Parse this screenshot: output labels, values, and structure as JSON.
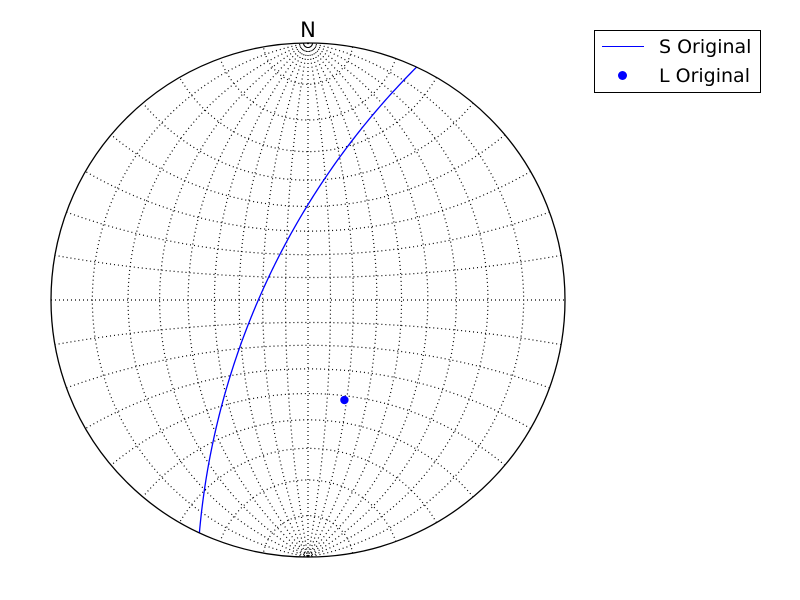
{
  "chart_data": {
    "type": "stereonet",
    "projection": "equal-angle lower hemisphere",
    "north_label": "N",
    "grid": true,
    "grid_spacing_deg": 10,
    "series": [
      {
        "name": "S Original",
        "kind": "great_circle",
        "strike_deg": 205,
        "dip_deg": 70,
        "color": "#0000ff"
      },
      {
        "name": "L Original",
        "kind": "pole",
        "trend_deg": 160,
        "plunge_deg": 45,
        "color": "#0000ff"
      }
    ],
    "legend": {
      "position": "top-right",
      "entries": [
        "S Original",
        "L Original"
      ]
    }
  }
}
